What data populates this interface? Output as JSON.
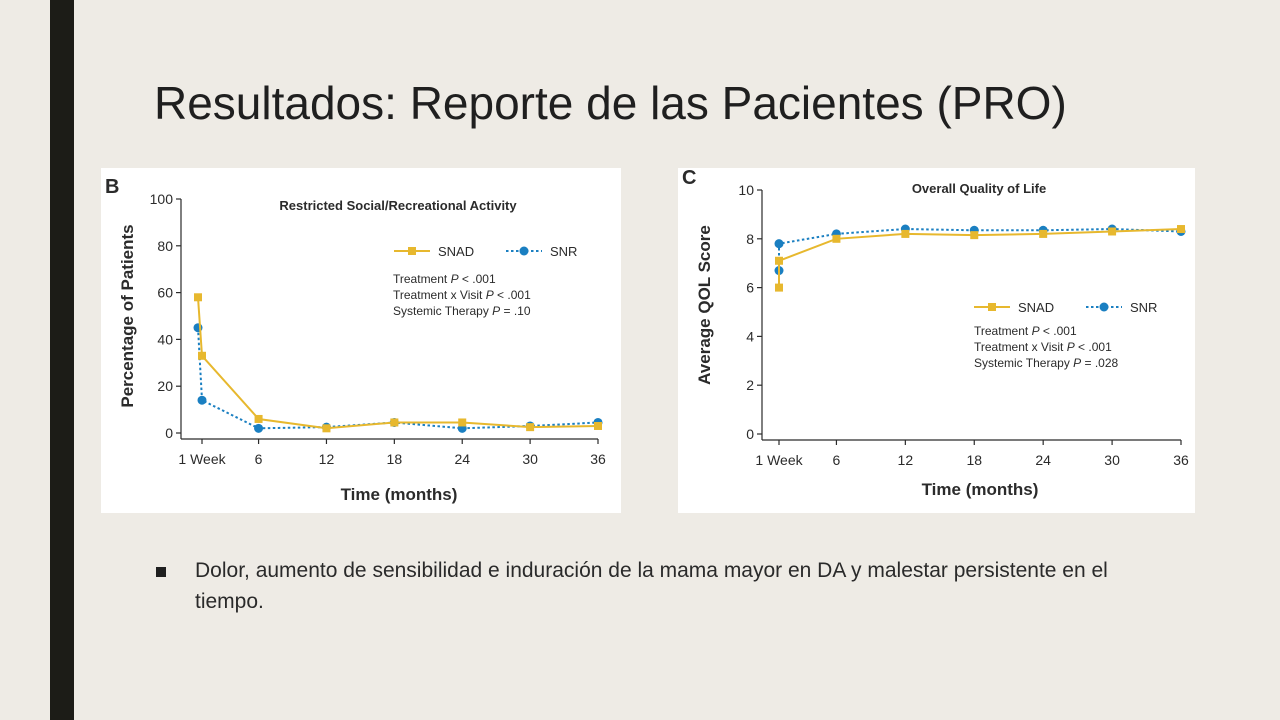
{
  "slide": {
    "title": "Resultados: Reporte de las Pacientes (PRO)",
    "bullet": "Dolor, aumento de sensibilidad e induración de la mama mayor en DA y malestar persistente en el tiempo."
  },
  "colors": {
    "background": "#eeebe5",
    "sidebar": "#1c1c17",
    "snad": "#e7b82e",
    "snr": "#1a7fc1"
  },
  "chart_data": [
    {
      "type": "line",
      "panel_label": "B",
      "title": "Restricted Social/Recreational Activity",
      "xlabel": "Time (months)",
      "ylabel": "Percentage of Patients",
      "x": [
        0.25,
        1,
        6,
        12,
        18,
        24,
        30,
        36
      ],
      "xticks": [
        1,
        6,
        12,
        18,
        24,
        30,
        36
      ],
      "xtick_labels": [
        "1 Week",
        "6",
        "12",
        "18",
        "24",
        "30",
        "36"
      ],
      "ylim": [
        0,
        100
      ],
      "yticks": [
        0,
        20,
        40,
        60,
        80,
        100
      ],
      "series": [
        {
          "name": "SNAD",
          "color": "#e7b82e",
          "marker": "square",
          "style": "solid",
          "values": [
            58,
            33,
            6,
            2,
            4.5,
            4.5,
            2.5,
            3
          ]
        },
        {
          "name": "SNR",
          "color": "#1a7fc1",
          "marker": "circle",
          "style": "dotted",
          "values": [
            45,
            14,
            2,
            2.5,
            4.5,
            2,
            3,
            4.5
          ]
        }
      ],
      "annotations": [
        {
          "label": "Treatment ",
          "p": "P",
          "value": " < .001"
        },
        {
          "label": "Treatment x Visit ",
          "p": "P",
          "value": " < .001"
        },
        {
          "label": "Systemic Therapy ",
          "p": "P",
          "value": " = .10"
        }
      ],
      "legend": "top-right",
      "grid": false
    },
    {
      "type": "line",
      "panel_label": "C",
      "title": "Overall Quality of Life",
      "xlabel": "Time (months)",
      "ylabel": "Average QOL Score",
      "x": [
        0.25,
        1,
        6,
        12,
        18,
        24,
        30,
        36
      ],
      "xticks": [
        1,
        6,
        12,
        18,
        24,
        30,
        36
      ],
      "xtick_labels": [
        "1 Week",
        "6",
        "12",
        "18",
        "24",
        "30",
        "36"
      ],
      "ylim": [
        0,
        10
      ],
      "yticks": [
        0,
        2,
        4,
        6,
        8,
        10
      ],
      "series": [
        {
          "name": "SNAD",
          "color": "#e7b82e",
          "marker": "square",
          "style": "solid",
          "values": [
            6.0,
            7.1,
            8.0,
            8.2,
            8.15,
            8.2,
            8.3,
            8.4
          ]
        },
        {
          "name": "SNR",
          "color": "#1a7fc1",
          "marker": "circle",
          "style": "dotted",
          "values": [
            6.7,
            7.8,
            8.2,
            8.4,
            8.35,
            8.35,
            8.4,
            8.3
          ]
        }
      ],
      "annotations": [
        {
          "label": "Treatment ",
          "p": "P",
          "value": " < .001"
        },
        {
          "label": "Treatment x Visit ",
          "p": "P",
          "value": " < .001"
        },
        {
          "label": "Systemic Therapy ",
          "p": "P",
          "value": " = .028"
        }
      ],
      "legend": "right",
      "grid": false
    }
  ]
}
